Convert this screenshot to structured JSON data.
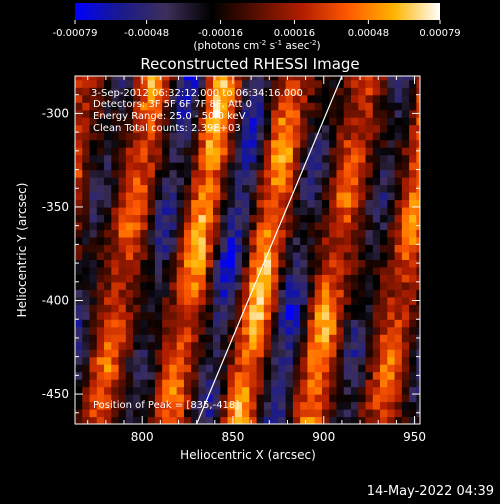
{
  "colorbar": {
    "ticks": [
      "-0.00079",
      "-0.00048",
      "-0.00016",
      "0.00016",
      "0.00048",
      "0.00079"
    ],
    "tick_values": [
      -0.00079,
      -0.00048,
      -0.00016,
      0.00016,
      0.00048,
      0.00079
    ],
    "unit_main": "(photons cm",
    "unit_exp1": "-2",
    "unit_mid": " s",
    "unit_exp2": "-1",
    "unit_tail": " asec",
    "unit_exp3": "-2",
    "unit_close": ")",
    "colors": [
      "#0000ff",
      "#1a1a8c",
      "#3d2f5a",
      "#000000",
      "#5a0f00",
      "#b41e00",
      "#ff5a00",
      "#ffb400",
      "#ffffff"
    ]
  },
  "chart_data": {
    "type": "heatmap",
    "title": "Reconstructed RHESSI Image",
    "xlabel": "Heliocentric X (arcsec)",
    "ylabel": "Heliocentric Y (arcsec)",
    "xlim": [
      763,
      953
    ],
    "ylim": [
      -466,
      -280
    ],
    "x_ticks": [
      800,
      850,
      900,
      950
    ],
    "y_ticks": [
      -300,
      -350,
      -400,
      -450
    ],
    "x_tick_labels": [
      "800",
      "850",
      "900",
      "950"
    ],
    "y_tick_labels": [
      "-300",
      "-350",
      "-400",
      "-450"
    ],
    "annotations": {
      "time": "3-Sep-2012 06:32:12.000 to 06:34:16.000",
      "detectors": "Detectors: 3F 5F 6F 7F 8F, Att 0",
      "energy": "Energy Range: 25.0 - 50.0 keV",
      "clean": "Clean    Total counts: 2.39E+03",
      "peak": "Position of Peak = [835,-418]"
    },
    "peak": [
      835,
      -418
    ],
    "limb_line": [
      [
        830,
        -466
      ],
      [
        910,
        -280
      ]
    ],
    "stripes": {
      "angle_deg": 68,
      "period_arcsec": 36
    }
  },
  "footer": {
    "date": "14-May-2022 04:39"
  }
}
